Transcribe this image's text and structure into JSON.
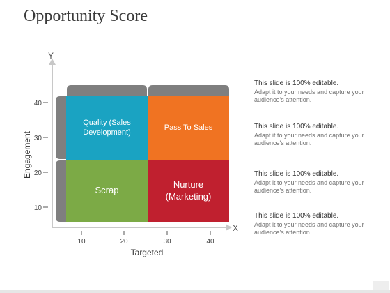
{
  "title": "Opportunity Score",
  "axes": {
    "x_letter": "X",
    "y_letter": "Y",
    "x_title": "Targeted",
    "y_title": "Engagement",
    "x_ticks": [
      "10",
      "20",
      "30",
      "40"
    ],
    "y_ticks": [
      "40",
      "30",
      "20",
      "10"
    ]
  },
  "quadrants": {
    "top_left": {
      "label": "Quality (Sales\nDevelopment)",
      "color": "#1aa3c2"
    },
    "top_right": {
      "label": "Pass To Sales",
      "color": "#f07322"
    },
    "bottom_left": {
      "label": "Scrap",
      "color": "#7caa46"
    },
    "bottom_right": {
      "label": "Nurture\n(Marketing)",
      "color": "#c0202f"
    }
  },
  "bracket_color": "#7f7f7f",
  "notes": [
    {
      "heading": "This slide is 100% editable.",
      "body": "Adapt it to your needs and capture your audience's attention."
    },
    {
      "heading": "This slide is 100% editable.",
      "body": "Adapt it to your needs and capture your audience's attention."
    },
    {
      "heading": "This slide is 100% editable.",
      "body": "Adapt it to your needs and capture your audience's attention."
    },
    {
      "heading": "This slide is 100% editable.",
      "body": "Adapt it to your needs and capture your audience's attention."
    }
  ]
}
